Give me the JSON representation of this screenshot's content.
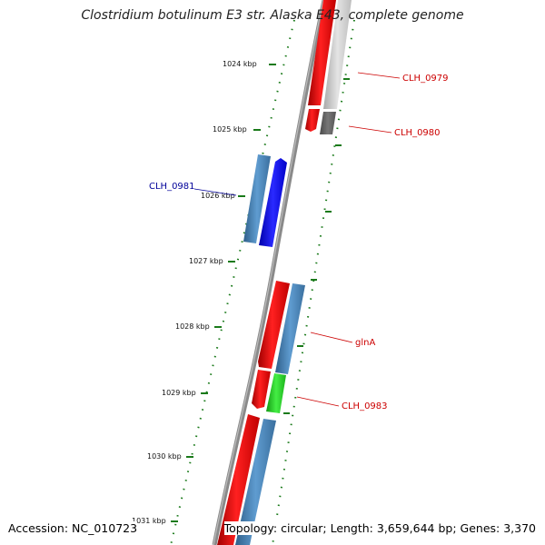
{
  "title": "Clostridium botulinum E3 str. Alaska E43, complete genome",
  "footer": {
    "accession": "Accession: NC_010723",
    "stats": "Topology: circular; Length: 3,659,644 bp; Genes: 3,370"
  },
  "scale": {
    "unit": "kbp",
    "ticks": [
      "1024 kbp",
      "1025 kbp",
      "1026 kbp",
      "1027 kbp",
      "1028 kbp",
      "1029 kbp",
      "1030 kbp",
      "1031 kbp"
    ]
  },
  "genes": [
    {
      "label": "CLH_0979",
      "color": "#cc0000"
    },
    {
      "label": "CLH_0980",
      "color": "#cc0000"
    },
    {
      "label": "CLH_0981",
      "color": "#000099"
    },
    {
      "label": "glnA",
      "color": "#cc0000"
    },
    {
      "label": "CLH_0983",
      "color": "#cc0000"
    }
  ],
  "colors": {
    "red_feature": "#ee0000",
    "blue_feature": "#0000ee",
    "steelblue_feature": "#4682b4",
    "green_feature": "#22cc22",
    "lightgray_feature": "#c8c8c8",
    "darkgray_feature": "#666666",
    "backbone": "#888888",
    "tick_green": "#1a7a1a"
  }
}
